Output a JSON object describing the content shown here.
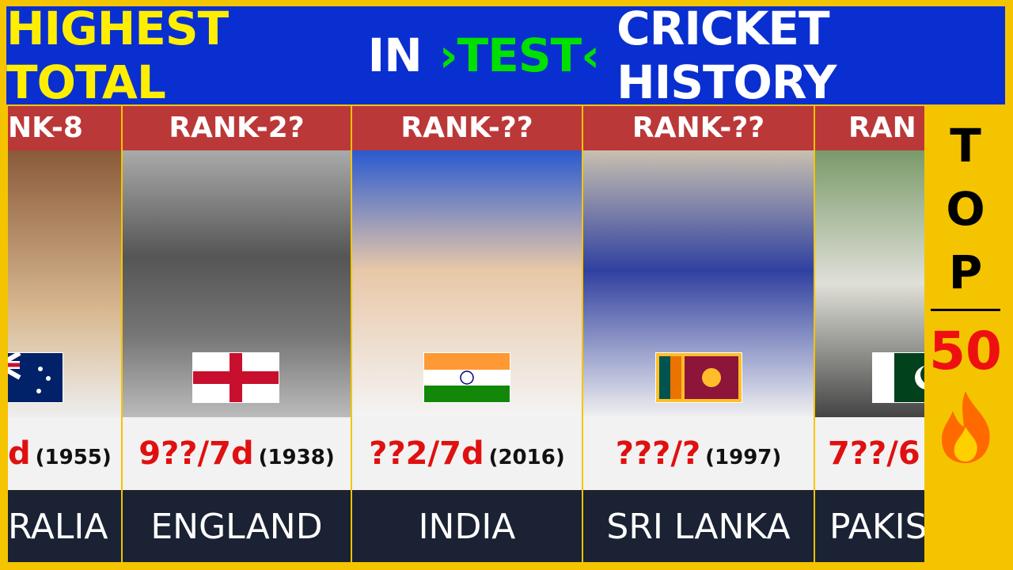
{
  "header": {
    "title_parts": [
      {
        "text": "HIGHEST TOTAL",
        "color": "#ffee00"
      },
      {
        "text": "IN",
        "color": "#ffffff"
      },
      {
        "text": "›TEST‹",
        "color": "#00e000"
      },
      {
        "text": "CRICKET HISTORY",
        "color": "#ffffff"
      }
    ]
  },
  "cards": [
    {
      "rank": "NK-8",
      "score": "d",
      "year": "(1955)",
      "country": "RALIA"
    },
    {
      "rank": "RANK-2?",
      "score": "9??/7d",
      "year": "(1938)",
      "country": "ENGLAND"
    },
    {
      "rank": "RANK-??",
      "score": "??2/7d",
      "year": "(2016)",
      "country": "INDIA"
    },
    {
      "rank": "RANK-??",
      "score": "???/?",
      "year": "(1997)",
      "country": "SRI LANKA"
    },
    {
      "rank": "RAN",
      "score": "7??/6",
      "country": "PAKIS"
    }
  ],
  "side": {
    "letters": [
      "T",
      "O",
      "P"
    ],
    "number": "50"
  }
}
